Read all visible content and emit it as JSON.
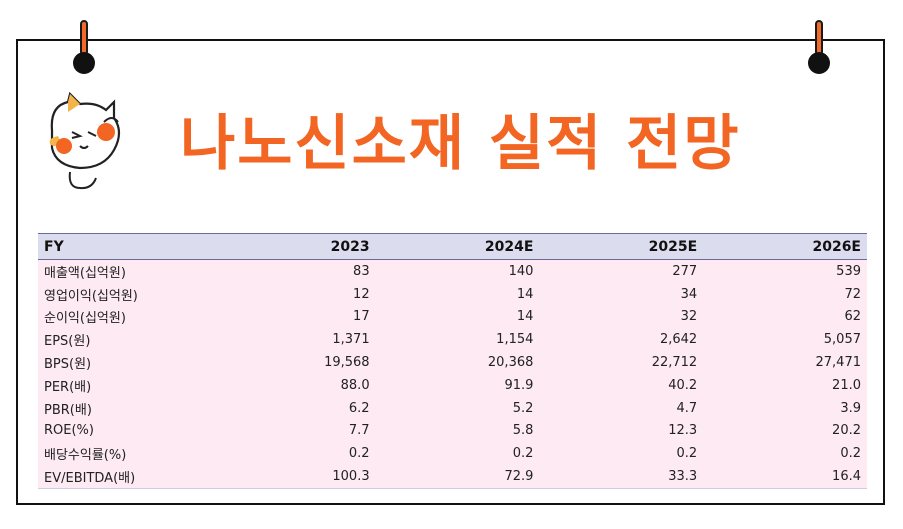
{
  "title": "나노신소재 실적 전망",
  "colors": {
    "accent": "#f26522",
    "header_bg": "#dcdcef",
    "row_bg": "#fdeaf2"
  },
  "table": {
    "columns": [
      "FY",
      "2023",
      "2024E",
      "2025E",
      "2026E"
    ],
    "rows": [
      [
        "매출액(십억원)",
        "83",
        "140",
        "277",
        "539"
      ],
      [
        "영업이익(십억원)",
        "12",
        "14",
        "34",
        "72"
      ],
      [
        "순이익(십억원)",
        "17",
        "14",
        "32",
        "62"
      ],
      [
        "EPS(원)",
        "1,371",
        "1,154",
        "2,642",
        "5,057"
      ],
      [
        "BPS(원)",
        "19,568",
        "20,368",
        "22,712",
        "27,471"
      ],
      [
        "PER(배)",
        "88.0",
        "91.9",
        "40.2",
        "21.0"
      ],
      [
        "PBR(배)",
        "6.2",
        "5.2",
        "4.7",
        "3.9"
      ],
      [
        "ROE(%)",
        "7.7",
        "5.8",
        "12.3",
        "20.2"
      ],
      [
        "배당수익률(%)",
        "0.2",
        "0.2",
        "0.2",
        "0.2"
      ],
      [
        "EV/EBITDA(배)",
        "100.3",
        "72.9",
        "33.3",
        "16.4"
      ]
    ]
  }
}
